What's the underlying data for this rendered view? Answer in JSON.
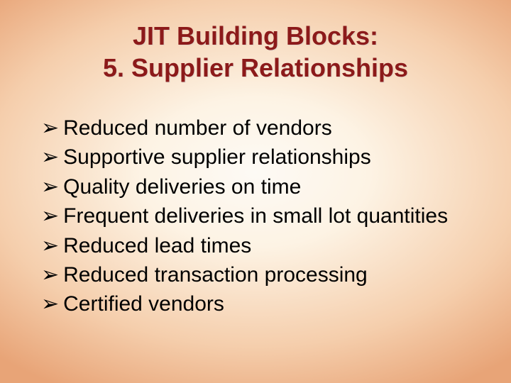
{
  "slide": {
    "title_line1": "JIT Building Blocks:",
    "title_line2": "5. Supplier Relationships",
    "title_color": "#8c1a1a",
    "title_fontsize": 36,
    "background": {
      "type": "radial-gradient",
      "inner_color": "#fdfaf5",
      "mid_color": "#f5ceac",
      "outer_color": "#e8a477"
    },
    "bullet_marker": "➢",
    "bullet_fontsize": 30,
    "bullet_color": "#000000",
    "bullets": [
      "Reduced number of vendors",
      "Supportive supplier relationships",
      "Quality deliveries on time",
      "Frequent deliveries in small lot quantities",
      "Reduced lead times",
      "Reduced transaction processing",
      "Certified vendors"
    ]
  }
}
